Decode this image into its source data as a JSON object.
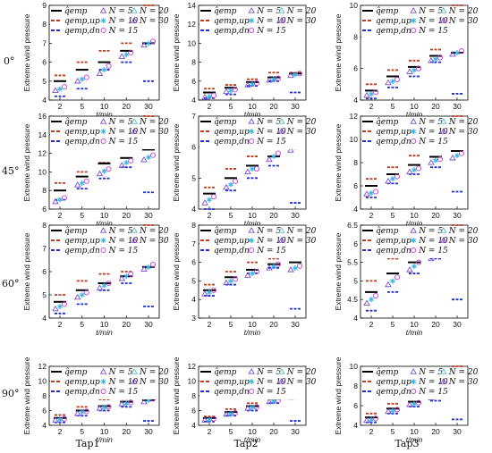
{
  "figure": {
    "row_labels": [
      "0°",
      "45°",
      "60°",
      "90°"
    ],
    "column_labels": [
      "Tap1",
      "Tap2",
      "Tap3"
    ],
    "colors": {
      "emp": "#000000",
      "up": "#c0391b",
      "dn": "#1f2fd1",
      "N5": "#7b4fd1",
      "N10": "#35b7e6",
      "N15": "#c73fd9",
      "N20": "#55b8c9",
      "N30": "#8a3fe0"
    },
    "legend": {
      "emp": "q̂emp",
      "up": "qemp,up",
      "dn": "qemp,dn",
      "N5": "N = 5",
      "N10": "N = 10",
      "N15": "N = 15",
      "N20": "N = 20",
      "N30": "N = 30"
    }
  },
  "chart_data": [
    {
      "type": "scatter",
      "row": "0°",
      "col": "Tap1",
      "ylabel": "Extreme wind pressure",
      "xlabel": "t/min",
      "categories": [
        "2",
        "5",
        "10",
        "20",
        "30"
      ],
      "ylim": [
        4,
        9
      ],
      "yticks": [
        4,
        5,
        6,
        7,
        8,
        9
      ],
      "emp": [
        5.0,
        5.6,
        6.0,
        6.6,
        7.0
      ],
      "up": [
        5.3,
        6.0,
        6.6,
        7.0,
        9.0
      ],
      "dn": [
        4.2,
        4.6,
        5.6,
        6.0,
        5.0
      ],
      "N5": [
        4.5,
        5.0,
        5.4,
        6.3,
        6.9
      ],
      "N10": [
        4.6,
        5.1,
        5.6,
        6.4,
        7.0
      ],
      "N15": [
        4.7,
        5.2,
        5.8,
        6.5,
        7.1
      ]
    },
    {
      "type": "scatter",
      "row": "0°",
      "col": "Tap2",
      "ylabel": "Extreme wind pressure",
      "xlabel": "t/min",
      "categories": [
        "2",
        "5",
        "10",
        "20",
        "30"
      ],
      "ylim": [
        4,
        14
      ],
      "yticks": [
        4,
        6,
        8,
        10,
        12,
        14
      ],
      "emp": [
        4.8,
        5.3,
        5.9,
        6.4,
        6.8
      ],
      "up": [
        5.2,
        5.6,
        6.2,
        6.9,
        6.9
      ],
      "dn": [
        4.2,
        4.6,
        5.5,
        6.0,
        4.8
      ],
      "N5": [
        4.3,
        4.9,
        5.6,
        6.1,
        6.6
      ],
      "N10": [
        4.4,
        5.0,
        5.7,
        6.2,
        6.7
      ],
      "N15": [
        4.5,
        5.1,
        5.8,
        6.3,
        6.8
      ]
    },
    {
      "type": "scatter",
      "row": "0°",
      "col": "Tap3",
      "ylabel": "Extreme wind pressure",
      "xlabel": "t/min",
      "categories": [
        "2",
        "5",
        "10",
        "20",
        "30"
      ],
      "ylim": [
        4,
        10
      ],
      "yticks": [
        4,
        6,
        8,
        10
      ],
      "emp": [
        4.6,
        5.5,
        6.1,
        6.8,
        7.0
      ],
      "up": [
        5.0,
        5.9,
        6.5,
        7.2,
        10.0
      ],
      "dn": [
        4.1,
        4.8,
        5.5,
        6.4,
        4.4
      ],
      "N5": [
        4.3,
        5.1,
        5.8,
        6.5,
        6.9
      ],
      "N10": [
        4.4,
        5.2,
        5.9,
        6.6,
        7.0
      ],
      "N15": [
        4.5,
        5.3,
        6.0,
        6.7,
        7.1
      ]
    },
    {
      "type": "scatter",
      "row": "45°",
      "col": "Tap1",
      "ylabel": "Extreme wind pressure",
      "xlabel": "t/min",
      "categories": [
        "2",
        "5",
        "10",
        "20",
        "30"
      ],
      "ylim": [
        6,
        16
      ],
      "yticks": [
        6,
        8,
        10,
        12,
        14,
        16
      ],
      "emp": [
        8.0,
        9.5,
        10.9,
        11.5,
        12.4
      ],
      "up": [
        8.8,
        10.0,
        11.0,
        12.6,
        16.0
      ],
      "dn": [
        7.0,
        8.2,
        9.3,
        10.5,
        7.8
      ],
      "N5": [
        6.8,
        8.6,
        9.8,
        10.7,
        11.3
      ],
      "N10": [
        7.0,
        8.8,
        10.1,
        11.0,
        11.6
      ],
      "N15": [
        7.2,
        9.0,
        10.3,
        11.2,
        11.8
      ]
    },
    {
      "type": "scatter",
      "row": "45°",
      "col": "Tap2",
      "ylabel": "Extreme wind pressure",
      "xlabel": "t/min",
      "categories": [
        "2",
        "5",
        "10",
        "20",
        "30"
      ],
      "ylim": [
        4,
        7
      ],
      "yticks": [
        4,
        5,
        6,
        7
      ],
      "emp": [
        4.5,
        5.0,
        5.4,
        5.7,
        6.0
      ],
      "up": [
        4.7,
        5.3,
        5.7,
        6.1,
        6.2
      ],
      "dn": [
        4.0,
        4.6,
        5.0,
        5.4,
        4.2
      ],
      "N5": [
        4.2,
        4.7,
        5.2,
        5.6,
        5.9
      ],
      "N10": [
        4.3,
        4.8,
        5.3,
        5.7,
        6.0
      ],
      "N15": [
        4.4,
        4.9,
        5.3,
        5.8,
        6.1
      ]
    },
    {
      "type": "scatter",
      "row": "45°",
      "col": "Tap3",
      "ylabel": "Extreme wind pressure",
      "xlabel": "t/min",
      "categories": [
        "2",
        "5",
        "10",
        "20",
        "30"
      ],
      "ylim": [
        4,
        12
      ],
      "yticks": [
        4,
        6,
        8,
        10,
        12
      ],
      "emp": [
        6.0,
        7.0,
        7.8,
        8.5,
        9.0
      ],
      "up": [
        6.6,
        7.6,
        8.6,
        9.6,
        12.0
      ],
      "dn": [
        5.0,
        6.2,
        7.0,
        7.6,
        5.5
      ],
      "N5": [
        5.3,
        6.4,
        7.2,
        8.0,
        8.4
      ],
      "N10": [
        5.4,
        6.6,
        7.4,
        8.2,
        8.6
      ],
      "N15": [
        5.5,
        6.8,
        7.5,
        8.3,
        8.8
      ]
    },
    {
      "type": "scatter",
      "row": "60°",
      "col": "Tap1",
      "ylabel": "Extreme wind pressure",
      "xlabel": "t/min",
      "categories": [
        "2",
        "5",
        "10",
        "20",
        "30"
      ],
      "ylim": [
        4,
        8
      ],
      "yticks": [
        4,
        5,
        6,
        7,
        8
      ],
      "emp": [
        4.7,
        5.2,
        5.5,
        5.8,
        6.2
      ],
      "up": [
        5.0,
        5.6,
        5.9,
        6.0,
        8.0
      ],
      "dn": [
        4.2,
        4.6,
        5.2,
        5.5,
        4.5
      ],
      "N5": [
        4.4,
        4.9,
        5.3,
        5.7,
        6.1
      ],
      "N10": [
        4.5,
        5.0,
        5.4,
        5.8,
        6.2
      ],
      "N15": [
        4.6,
        5.1,
        5.5,
        5.9,
        6.3
      ]
    },
    {
      "type": "scatter",
      "row": "60°",
      "col": "Tap2",
      "ylabel": "Extreme wind pressure",
      "xlabel": "t/min",
      "categories": [
        "2",
        "5",
        "10",
        "20",
        "30"
      ],
      "ylim": [
        3,
        8
      ],
      "yticks": [
        3,
        4,
        5,
        6,
        7,
        8
      ],
      "emp": [
        4.5,
        5.2,
        5.6,
        5.9,
        6.0
      ],
      "up": [
        4.8,
        5.5,
        6.0,
        6.2,
        7.8
      ],
      "dn": [
        4.2,
        4.8,
        5.4,
        5.7,
        3.5
      ],
      "N5": [
        4.3,
        4.9,
        5.3,
        5.7,
        5.6
      ],
      "N10": [
        4.4,
        5.0,
        5.4,
        5.8,
        5.7
      ],
      "N15": [
        4.5,
        5.1,
        5.5,
        5.9,
        5.8
      ]
    },
    {
      "type": "scatter",
      "row": "60°",
      "col": "Tap3",
      "ylabel": "Extreme wind pressure",
      "xlabel": "t/min",
      "categories": [
        "2",
        "5",
        "10",
        "20",
        "30"
      ],
      "ylim": [
        4,
        6.5
      ],
      "yticks": [
        4,
        4.5,
        5,
        5.5,
        6,
        6.5
      ],
      "emp": [
        4.7,
        5.2,
        5.5,
        5.9,
        6.1
      ],
      "up": [
        5.0,
        5.6,
        5.8,
        6.2,
        6.5
      ],
      "dn": [
        4.2,
        4.7,
        5.2,
        5.6,
        4.5
      ],
      "N5": [
        4.4,
        4.9,
        5.3,
        5.6,
        5.9
      ],
      "N10": [
        4.5,
        5.0,
        5.4,
        5.7,
        6.0
      ],
      "N15": [
        4.6,
        5.1,
        5.5,
        5.8,
        6.1
      ]
    },
    {
      "type": "scatter",
      "row": "90°",
      "col": "Tap1",
      "ylabel": "Extreme wind pressure",
      "xlabel": "t/min",
      "categories": [
        "2",
        "5",
        "10",
        "20",
        "30"
      ],
      "ylim": [
        4,
        12
      ],
      "yticks": [
        4,
        6,
        8,
        10,
        12
      ],
      "emp": [
        5.0,
        6.0,
        6.6,
        7.2,
        7.4
      ],
      "up": [
        5.4,
        6.5,
        7.5,
        7.6,
        9.0
      ],
      "dn": [
        4.4,
        5.3,
        6.0,
        6.5,
        4.6
      ],
      "N5": [
        4.7,
        5.6,
        6.3,
        6.9,
        7.2
      ],
      "N10": [
        4.8,
        5.8,
        6.4,
        7.0,
        7.4
      ],
      "N15": [
        4.9,
        5.9,
        6.5,
        7.1,
        7.6
      ]
    },
    {
      "type": "scatter",
      "row": "90°",
      "col": "Tap2",
      "ylabel": "Extreme wind pressure",
      "xlabel": "t/min",
      "categories": [
        "2",
        "5",
        "10",
        "20",
        "30"
      ],
      "ylim": [
        4,
        12
      ],
      "yticks": [
        4,
        6,
        8,
        10,
        12
      ],
      "emp": [
        5.0,
        5.8,
        6.6,
        7.6,
        8.2
      ],
      "up": [
        5.2,
        6.2,
        7.0,
        7.8,
        8.4
      ],
      "dn": [
        4.5,
        5.3,
        6.0,
        7.0,
        4.6
      ],
      "N5": [
        4.7,
        5.5,
        6.3,
        7.2,
        7.8
      ],
      "N10": [
        4.8,
        5.6,
        6.4,
        7.3,
        7.9
      ],
      "N15": [
        4.9,
        5.7,
        6.5,
        7.4,
        8.0
      ]
    },
    {
      "type": "scatter",
      "row": "90°",
      "col": "Tap3",
      "ylabel": "Extreme wind pressure",
      "xlabel": "t/min",
      "categories": [
        "2",
        "5",
        "10",
        "20",
        "30"
      ],
      "ylim": [
        4,
        10
      ],
      "yticks": [
        4,
        6,
        8,
        10
      ],
      "emp": [
        4.8,
        5.7,
        6.4,
        7.0,
        7.4
      ],
      "up": [
        5.2,
        6.2,
        6.8,
        7.4,
        10.0
      ],
      "dn": [
        4.3,
        5.2,
        5.9,
        6.5,
        4.6
      ],
      "N5": [
        4.5,
        5.4,
        6.1,
        6.8,
        7.2
      ],
      "N10": [
        4.6,
        5.5,
        6.2,
        6.9,
        7.3
      ],
      "N15": [
        4.7,
        5.6,
        6.3,
        7.0,
        7.4
      ]
    }
  ]
}
